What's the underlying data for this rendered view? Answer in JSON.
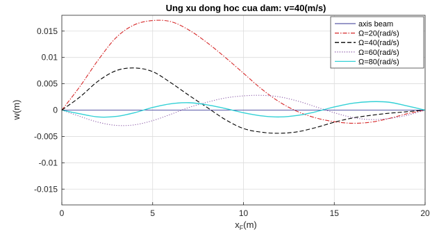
{
  "chart_data": {
    "type": "line",
    "title": "Ung xu dong hoc cua dam: v=40(m/s)",
    "xlabel": "x",
    "xlabel_sub": "F",
    "xlabel_unit": "(m)",
    "ylabel": "w(m)",
    "xlim": [
      0,
      20
    ],
    "ylim": [
      -0.018,
      0.018
    ],
    "xticks": [
      0,
      5,
      10,
      15,
      20
    ],
    "xtick_labels": [
      "0",
      "5",
      "10",
      "15",
      "20"
    ],
    "yticks": [
      0.015,
      0.01,
      0.005,
      0,
      -0.005,
      -0.01,
      -0.015
    ],
    "ytick_labels": [
      "0.015",
      "0.01",
      "0.005",
      "0",
      "-0.005",
      "-0.01",
      "-0.015"
    ],
    "grid": true,
    "legend_position": "top-right",
    "x": [
      0,
      1,
      2,
      3,
      4,
      5,
      6,
      7,
      8,
      9,
      10,
      11,
      12,
      13,
      14,
      15,
      16,
      17,
      18,
      19,
      20
    ],
    "series": [
      {
        "name": "axis beam",
        "color": "#5a5aa8",
        "style": "solid",
        "values": [
          0,
          0,
          0,
          0,
          0,
          0,
          0,
          0,
          0,
          0,
          0,
          0,
          0,
          0,
          0,
          0,
          0,
          0,
          0,
          0,
          0
        ]
      },
      {
        "name": "Ω=20(rad/s)",
        "color": "#d62728",
        "style": "dashdot",
        "values": [
          0,
          0.0045,
          0.0095,
          0.0138,
          0.0162,
          0.017,
          0.0168,
          0.0152,
          0.0128,
          0.01,
          0.007,
          0.004,
          0.0015,
          -0.0003,
          -0.0015,
          -0.0022,
          -0.0025,
          -0.0023,
          -0.0016,
          -0.0007,
          0
        ]
      },
      {
        "name": "Ω=40(rad/s)",
        "color": "#000000",
        "style": "dashed",
        "values": [
          0,
          0.0025,
          0.0055,
          0.0075,
          0.008,
          0.0073,
          0.0052,
          0.0028,
          0.0005,
          -0.0018,
          -0.0035,
          -0.0042,
          -0.0044,
          -0.0041,
          -0.0033,
          -0.0023,
          -0.0015,
          -0.001,
          -0.0006,
          -0.0003,
          0
        ]
      },
      {
        "name": "Ω=60(rad/s)",
        "color": "#8a5aa8",
        "style": "dotted",
        "values": [
          0,
          -0.0012,
          -0.0023,
          -0.0029,
          -0.0028,
          -0.002,
          -0.0008,
          0.0005,
          0.0015,
          0.0023,
          0.0027,
          0.0028,
          0.0025,
          0.0017,
          0.0006,
          -0.0005,
          -0.0014,
          -0.0018,
          -0.0016,
          -0.001,
          0
        ]
      },
      {
        "name": "Ω=80(rad/s)",
        "color": "#33d1d6",
        "style": "solid",
        "values": [
          0,
          -0.0007,
          -0.0013,
          -0.0012,
          -0.0005,
          0.0005,
          0.0012,
          0.0014,
          0.001,
          0.0003,
          -0.0005,
          -0.0011,
          -0.0013,
          -0.001,
          -0.0003,
          0.0006,
          0.0013,
          0.0016,
          0.0015,
          0.0008,
          0
        ]
      }
    ]
  }
}
